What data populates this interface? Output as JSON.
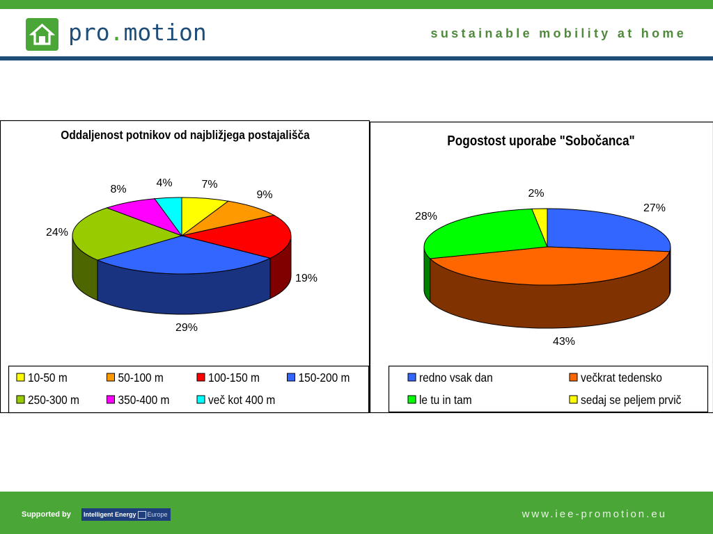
{
  "header": {
    "logo_text_a": "pro",
    "logo_text_dot": ".",
    "logo_text_b": "motion",
    "tagline": "sustainable mobility at home"
  },
  "footer": {
    "supported_by": "Supported by",
    "partner_logo_a": "Intelligent Energy",
    "partner_logo_b": "Europe",
    "url": "www.iee-promotion.eu"
  },
  "colors": {
    "brand_green": "#4aa637",
    "brand_blue": "#1e4e78"
  },
  "chart_data": [
    {
      "type": "pie",
      "title": "Oddaljenost potnikov od najbližjega postajališča",
      "categories": [
        "10-50 m",
        "50-100 m",
        "100-150 m",
        "150-200 m",
        "250-300 m",
        "350-400 m",
        "več kot 400 m"
      ],
      "values": [
        7,
        9,
        19,
        29,
        24,
        8,
        4
      ],
      "labels": [
        "7%",
        "9%",
        "19%",
        "29%",
        "24%",
        "8%",
        "4%"
      ],
      "colors": [
        "#ffff00",
        "#ff9900",
        "#ff0000",
        "#3366ff",
        "#99cc00",
        "#ff00ff",
        "#00ffff"
      ],
      "legend": "bottom"
    },
    {
      "type": "pie",
      "title": "Pogostost uporabe \"Sobočanca\"",
      "categories": [
        "redno vsak dan",
        "večkrat tedensko",
        "le tu in tam",
        "sedaj se peljem prvič"
      ],
      "values": [
        27,
        43,
        28,
        2
      ],
      "labels": [
        "27%",
        "43%",
        "28%",
        "2%"
      ],
      "colors": [
        "#3366ff",
        "#ff6600",
        "#00ff00",
        "#ffff00"
      ],
      "legend": "bottom"
    }
  ]
}
